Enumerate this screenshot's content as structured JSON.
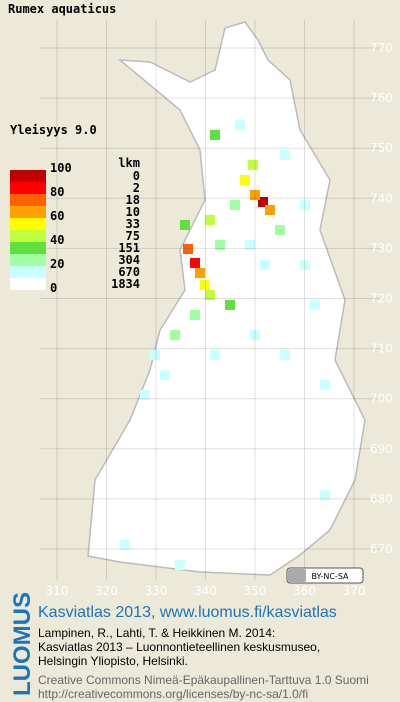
{
  "title": "Rumex aquaticus",
  "frequency": "Yleisyys 9.0",
  "legend": {
    "scale_labels": [
      100,
      80,
      60,
      40,
      20,
      0
    ],
    "count_header": "lkm",
    "counts": [
      0,
      2,
      18,
      10,
      33,
      75,
      151,
      304,
      670,
      1834
    ]
  },
  "axes": {
    "xticks": [
      310,
      320,
      330,
      340,
      350,
      360,
      370
    ],
    "yticks": [
      770,
      760,
      750,
      740,
      730,
      720,
      710,
      700,
      690,
      680,
      670
    ]
  },
  "badge": "BY-NC-SA",
  "footer": {
    "logo": "LUOMUS",
    "headline": "Kasviatlas 2013, www.luomus.fi/kasviatlas",
    "citation": [
      "Lampinen, R., Lahti, T. & Heikkinen M. 2014:",
      "Kasviatlas 2013 – Luonnontieteellinen keskusmuseo,",
      "Helsingin Yliopisto, Helsinki."
    ],
    "license": [
      "Creative Commons Nimeä-Epäkaupallinen-Tarttuva 1.0 Suomi",
      "http://creativecommons.org/licenses/by-nc-sa/1.0/fi"
    ]
  }
}
